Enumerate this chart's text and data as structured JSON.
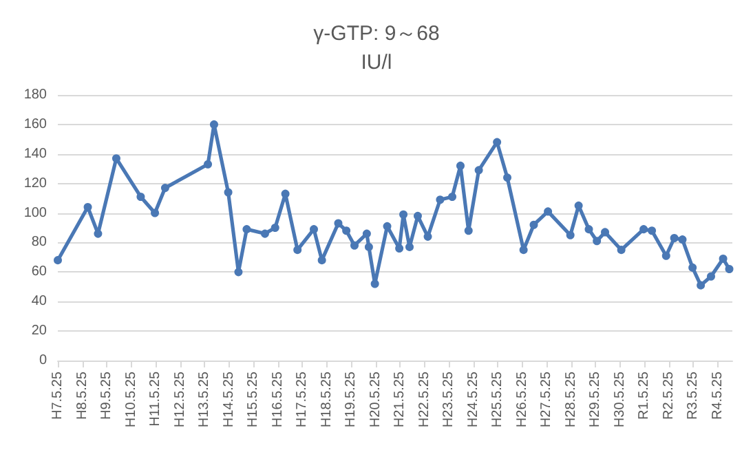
{
  "chart_data": {
    "type": "line",
    "title": "γ-GTP: 9～68",
    "subtitle": "IU/l",
    "x": [
      "1995-05-25",
      "1996-08-15",
      "1997-01-15",
      "1997-10-15",
      "1998-10-15",
      "1999-05-15",
      "1999-10-15",
      "2001-07-15",
      "2001-10-15",
      "2002-05-15",
      "2002-10-15",
      "2003-02-15",
      "2003-11-15",
      "2004-04-15",
      "2004-09-15",
      "2005-03-15",
      "2005-11-15",
      "2006-03-15",
      "2006-11-15",
      "2007-03-15",
      "2007-07-15",
      "2008-01-15",
      "2008-02-15",
      "2008-05-15",
      "2008-11-15",
      "2009-05-15",
      "2009-07-15",
      "2009-10-15",
      "2010-02-15",
      "2010-07-15",
      "2011-01-15",
      "2011-07-15",
      "2011-11-15",
      "2012-03-15",
      "2012-08-15",
      "2013-05-15",
      "2013-10-15",
      "2014-06-15",
      "2014-11-15",
      "2015-06-15",
      "2016-05-15",
      "2016-09-15",
      "2017-02-15",
      "2017-06-15",
      "2017-10-15",
      "2018-06-15",
      "2019-05-15",
      "2019-09-15",
      "2020-04-15",
      "2020-08-15",
      "2020-12-15",
      "2021-05-15",
      "2021-09-15",
      "2022-02-15",
      "2022-08-15",
      "2022-11-15"
    ],
    "series": [
      {
        "color": "#4a78b5",
        "values": [
          68,
          104,
          86,
          137,
          111,
          100,
          117,
          133,
          160,
          114,
          60,
          89,
          86,
          90,
          113,
          75,
          89,
          68,
          93,
          88,
          78,
          86,
          77,
          52,
          91,
          76,
          99,
          77,
          98,
          84,
          109,
          111,
          132,
          88,
          129,
          148,
          124,
          75,
          92,
          101,
          85,
          105,
          89,
          81,
          87,
          75,
          89,
          88,
          71,
          83,
          82,
          63,
          51,
          57,
          69,
          62
        ]
      }
    ],
    "xlim": [
      "1995-05-25",
      "2022-12-31"
    ],
    "xticks": [
      {
        "value": "1995-05-25",
        "label": "H7.5.25"
      },
      {
        "value": "1996-05-25",
        "label": "H8.5.25"
      },
      {
        "value": "1997-05-25",
        "label": "H9.5.25"
      },
      {
        "value": "1998-05-25",
        "label": "H10.5.25"
      },
      {
        "value": "1999-05-25",
        "label": "H11.5.25"
      },
      {
        "value": "2000-05-25",
        "label": "H12.5.25"
      },
      {
        "value": "2001-05-25",
        "label": "H13.5.25"
      },
      {
        "value": "2002-05-25",
        "label": "H14.5.25"
      },
      {
        "value": "2003-05-25",
        "label": "H15.5.25"
      },
      {
        "value": "2004-05-25",
        "label": "H16.5.25"
      },
      {
        "value": "2005-05-25",
        "label": "H17.5.25"
      },
      {
        "value": "2006-05-25",
        "label": "H18.5.25"
      },
      {
        "value": "2007-05-25",
        "label": "H19.5.25"
      },
      {
        "value": "2008-05-25",
        "label": "H20.5.25"
      },
      {
        "value": "2009-05-25",
        "label": "H21.5.25"
      },
      {
        "value": "2010-05-25",
        "label": "H22.5.25"
      },
      {
        "value": "2011-05-25",
        "label": "H23.5.25"
      },
      {
        "value": "2012-05-25",
        "label": "H24.5.25"
      },
      {
        "value": "2013-05-25",
        "label": "H25.5.25"
      },
      {
        "value": "2014-05-25",
        "label": "H26.5.25"
      },
      {
        "value": "2015-05-25",
        "label": "H27.5.25"
      },
      {
        "value": "2016-05-25",
        "label": "H28.5.25"
      },
      {
        "value": "2017-05-25",
        "label": "H29.5.25"
      },
      {
        "value": "2018-05-25",
        "label": "H30.5.25"
      },
      {
        "value": "2019-05-25",
        "label": "R1.5.25"
      },
      {
        "value": "2020-05-25",
        "label": "R2.5.25"
      },
      {
        "value": "2021-05-25",
        "label": "R3.5.25"
      },
      {
        "value": "2022-05-25",
        "label": "R4.5.25"
      }
    ],
    "ylim": [
      0,
      180
    ],
    "yticks": [
      0,
      20,
      40,
      60,
      80,
      100,
      120,
      140,
      160,
      180
    ],
    "grid": "y",
    "marker": "circle",
    "line_style": "solid"
  }
}
